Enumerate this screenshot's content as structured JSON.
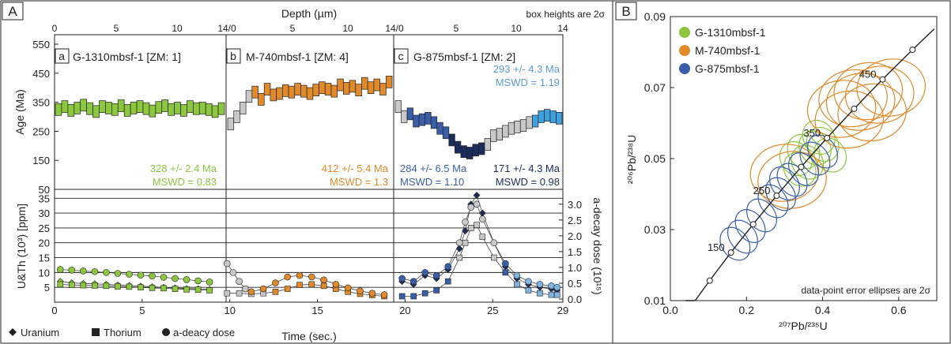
{
  "panelA": {
    "panel_label": "A",
    "depth_label": "Depth (µm)",
    "note": "box heights are 2σ",
    "age_ylabel": "Age (Ma)",
    "conc_ylabel": "U&Th (10³) [ppm]",
    "dose_ylabel": "a-decay dose (10¹⁵)",
    "xlabel": "Time (sec.)",
    "legend": {
      "uranium": "Uranium",
      "thorium": "Thorium",
      "dose": "a-deacy dose"
    },
    "samples": [
      {
        "letter": "a",
        "title": "G-1310mbsf-1 [ZM: 1]",
        "age1": "328 +/- 2.4 Ma",
        "mswd1": "MSWD = 0.83",
        "age2": "",
        "mswd2": "",
        "color": "#8dc63f"
      },
      {
        "letter": "b",
        "title": "M-740mbsf-1 [ZM: 4]",
        "age1": "412 +/- 5.4 Ma",
        "mswd1": "MSWD = 1.3",
        "age2": "",
        "mswd2": "",
        "color": "#e08a2c"
      },
      {
        "letter": "c",
        "title": "G-875mbsf-1 [ZM: 2]",
        "age1": "284 +/- 6.5 Ma",
        "mswd1": "MSWD = 1.10",
        "age2": "171 +/- 4.3 Ma",
        "mswd2": "MSWD = 0.98",
        "age3": "293 +/- 4.3 Ma",
        "mswd3": "MSWD = 1.19",
        "color": "#3a5ea8"
      }
    ]
  },
  "panelB": {
    "panel_label": "B",
    "xlabel": "²⁰⁷Pb/²³⁵U",
    "ylabel": "²⁰⁶Pb/²³⁸U",
    "note": "data-point error ellipses are 2σ",
    "legend": [
      {
        "name": "G-1310mbsf-1",
        "color": "#8dc63f"
      },
      {
        "name": "M-740mbsf-1",
        "color": "#e08a2c"
      },
      {
        "name": "G-875mbsf-1",
        "color": "#3a5ea8"
      }
    ]
  },
  "chart_data": [
    {
      "type": "scatter",
      "panel": "A-top",
      "x_axis": "Depth (µm)",
      "x_ticks_depth": [
        0,
        5,
        10,
        14
      ],
      "ylabel": "Age (Ma)",
      "ylim": [
        50,
        550
      ],
      "y_ticks": [
        50,
        150,
        250,
        350,
        450,
        550
      ],
      "series": [
        {
          "name": "G-1310mbsf-1",
          "time": [
            1,
            2,
            3,
            4,
            5,
            6,
            7,
            8,
            9,
            10,
            11,
            12,
            13,
            14,
            15,
            16,
            17,
            18,
            19,
            20,
            21,
            22,
            23,
            24,
            25,
            26,
            27
          ],
          "age": [
            325,
            335,
            322,
            330,
            340,
            328,
            318,
            335,
            330,
            325,
            338,
            322,
            330,
            335,
            328,
            320,
            332,
            338,
            325,
            330,
            322,
            335,
            328,
            330,
            325,
            318,
            328
          ]
        },
        {
          "name": "M-740mbsf-1",
          "time": [
            1,
            2,
            3,
            4,
            5,
            6,
            7,
            8,
            9,
            10,
            11,
            12,
            13,
            14,
            15,
            16,
            17,
            18,
            19,
            20,
            21,
            22,
            23,
            24,
            25,
            26,
            27
          ],
          "age": [
            275,
            300,
            330,
            370,
            385,
            360,
            395,
            375,
            380,
            390,
            385,
            395,
            388,
            380,
            392,
            400,
            395,
            388,
            410,
            398,
            405,
            392,
            415,
            400,
            410,
            395,
            420
          ]
        },
        {
          "name": "G-875mbsf-1",
          "time": [
            1,
            2,
            3,
            4,
            5,
            6,
            7,
            8,
            9,
            10,
            11,
            12,
            13,
            14,
            15,
            16,
            17,
            18,
            19,
            20,
            21,
            22,
            23,
            24,
            25,
            26,
            27,
            28
          ],
          "age": [
            335,
            300,
            310,
            285,
            290,
            295,
            280,
            260,
            245,
            220,
            195,
            180,
            175,
            185,
            190,
            205,
            235,
            240,
            250,
            260,
            265,
            270,
            280,
            285,
            300,
            305,
            300,
            295
          ]
        }
      ]
    },
    {
      "type": "scatter",
      "panel": "A-bottom",
      "xlabel": "Time (sec.)",
      "xlim": [
        0,
        29
      ],
      "x_ticks": [
        0,
        5,
        10,
        15,
        20,
        25,
        29
      ],
      "ylabel": "U&Th (10³) [ppm]",
      "ylim": [
        0,
        38
      ],
      "y_ticks": [
        5,
        10,
        15,
        20,
        25,
        30,
        35
      ],
      "y2label": "a-decay dose (10¹⁵)",
      "y2_ticks": [
        0.0,
        0.5,
        1.0,
        1.5,
        2.0,
        2.5,
        3.0
      ],
      "series": [
        {
          "name": "G-1310mbsf-1 Uranium",
          "x": [
            1,
            3,
            5,
            7,
            9,
            11,
            13,
            15,
            17,
            19,
            21,
            23,
            25,
            27
          ],
          "y": [
            7,
            6.5,
            6.3,
            6.2,
            6,
            5.8,
            5.6,
            5.4,
            5.2,
            5,
            4.8,
            4.6,
            4.5,
            4.3
          ]
        },
        {
          "name": "G-1310mbsf-1 Thorium",
          "x": [
            1,
            3,
            5,
            7,
            9,
            11,
            13,
            15,
            17,
            19,
            21,
            23,
            25,
            27
          ],
          "y": [
            6,
            5.8,
            5.7,
            5.6,
            5.5,
            5.3,
            5.2,
            5,
            4.8,
            4.7,
            4.5,
            4.3,
            4.2,
            4
          ]
        },
        {
          "name": "G-1310mbsf-1 a-deacy dose",
          "x": [
            1,
            3,
            5,
            7,
            9,
            11,
            13,
            15,
            17,
            19,
            21,
            23,
            25,
            27
          ],
          "y": [
            11,
            10.8,
            10.5,
            10.3,
            10,
            9.7,
            9.4,
            9.1,
            8.8,
            8.4,
            8,
            7.6,
            7.2,
            6.8
          ]
        },
        {
          "name": "M-740mbsf-1 Thorium",
          "x": [
            1,
            3,
            5,
            7,
            9,
            11,
            13,
            15,
            17,
            19,
            21,
            23,
            25,
            27
          ],
          "y": [
            3,
            3,
            2.8,
            3,
            3.5,
            4.5,
            5.8,
            6,
            5.5,
            4.5,
            3.5,
            2.8,
            2.4,
            2
          ]
        },
        {
          "name": "M-740mbsf-1 a-deacy dose",
          "x": [
            1,
            2,
            3,
            4,
            5,
            7,
            9,
            11,
            13,
            15,
            17,
            19,
            21,
            23,
            25,
            27
          ],
          "y": [
            13,
            10,
            7,
            4.5,
            3.5,
            4.5,
            6.5,
            8.5,
            9,
            8.5,
            7.5,
            6,
            4.8,
            3.8,
            3,
            2.5
          ]
        },
        {
          "name": "G-875mbsf-1 Uranium",
          "x": [
            1,
            3,
            5,
            7,
            9,
            11,
            12,
            13,
            14,
            15,
            17,
            19,
            21,
            23,
            25,
            27,
            28
          ],
          "y": [
            7,
            6,
            9,
            8,
            11,
            18,
            24,
            33,
            36,
            30,
            20,
            12,
            8,
            6,
            5,
            4.5,
            4
          ]
        },
        {
          "name": "G-875mbsf-1 Thorium",
          "x": [
            1,
            3,
            5,
            7,
            9,
            11,
            12,
            13,
            14,
            15,
            17,
            19,
            21,
            23,
            25,
            27,
            28
          ],
          "y": [
            2,
            2,
            3,
            4,
            7,
            15,
            20,
            25,
            26,
            22,
            15,
            10,
            6,
            4,
            3,
            2.5,
            2.5
          ]
        },
        {
          "name": "G-875mbsf-1 a-deacy dose",
          "x": [
            1,
            3,
            5,
            7,
            9,
            11,
            12,
            13,
            14,
            15,
            17,
            19,
            21,
            23,
            25,
            27,
            28
          ],
          "y": [
            8,
            7,
            10,
            9,
            12,
            20,
            27,
            32,
            33,
            28,
            20,
            13,
            9,
            7,
            6,
            5.5,
            5
          ]
        }
      ]
    },
    {
      "type": "scatter",
      "panel": "B",
      "xlabel": "²⁰⁷Pb/²³⁵U",
      "ylabel": "²⁰⁶Pb/²³⁸U",
      "xlim": [
        0,
        0.7
      ],
      "ylim": [
        0.01,
        0.09
      ],
      "x_ticks": [
        0.0,
        0.2,
        0.4,
        0.6
      ],
      "y_ticks": [
        0.01,
        0.03,
        0.05,
        0.07,
        0.09
      ],
      "concordia_labels": [
        150,
        250,
        350,
        450
      ],
      "series": [
        {
          "name": "G-1310mbsf-1",
          "x": [
            0.33,
            0.35,
            0.38,
            0.4,
            0.36,
            0.42,
            0.39,
            0.34
          ],
          "y": [
            0.05,
            0.052,
            0.053,
            0.054,
            0.049,
            0.051,
            0.056,
            0.047
          ]
        },
        {
          "name": "M-740mbsf-1",
          "x": [
            0.45,
            0.48,
            0.5,
            0.52,
            0.55,
            0.58,
            0.47,
            0.53,
            0.3,
            0.32
          ],
          "y": [
            0.064,
            0.067,
            0.066,
            0.069,
            0.068,
            0.07,
            0.061,
            0.063,
            0.046,
            0.044
          ]
        },
        {
          "name": "G-875mbsf-1",
          "x": [
            0.17,
            0.19,
            0.21,
            0.24,
            0.27,
            0.29,
            0.32,
            0.35,
            0.38,
            0.3,
            0.4
          ],
          "y": [
            0.026,
            0.028,
            0.031,
            0.034,
            0.038,
            0.04,
            0.044,
            0.047,
            0.05,
            0.043,
            0.052
          ]
        }
      ]
    }
  ]
}
